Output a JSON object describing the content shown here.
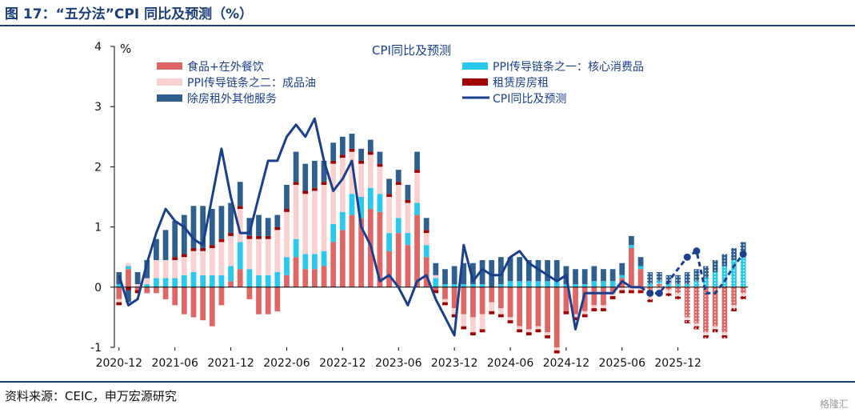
{
  "header": {
    "title": "图 17：“五分法”CPI 同比及预测（%）"
  },
  "footer": {
    "source": "资料来源：CEIC，申万宏源研究",
    "watermark": "格隆汇"
  },
  "colors": {
    "food": "#e06666",
    "core": "#29c9ef",
    "oil": "#f7d0cf",
    "rent": "#a00000",
    "services": "#2e5f8f",
    "cpi_line": "#1a3f8f"
  },
  "chart_data": {
    "type": "bar",
    "stacked": true,
    "legend_title": "CPI同比及预测",
    "legend_position": "top",
    "ylabel": "%",
    "ylim": [
      -1,
      4
    ],
    "yticks": [
      "-1",
      "0",
      "1",
      "2",
      "3",
      "4"
    ],
    "grid": false,
    "xtick_labels": [
      "2020-12",
      "2021-06",
      "2021-12",
      "2022-06",
      "2022-12",
      "2023-06",
      "2023-12",
      "2024-06",
      "2024-12",
      "2025-06",
      "2025-12"
    ],
    "forecast_from_index": 57,
    "series": [
      {
        "key": "food",
        "name": "食品+在外餐饮",
        "values": [
          -0.2,
          0.3,
          -0.05,
          -0.1,
          -0.1,
          -0.2,
          -0.3,
          -0.45,
          -0.5,
          -0.55,
          -0.65,
          -0.3,
          0.1,
          0.3,
          -0.2,
          -0.45,
          -0.45,
          -0.4,
          0.2,
          0.5,
          0.3,
          0.3,
          0.35,
          0.75,
          0.95,
          1.2,
          1.15,
          1.3,
          1.25,
          0.6,
          0.9,
          0.7,
          1.2,
          0.5,
          -0.05,
          -0.2,
          -0.35,
          -0.45,
          -0.5,
          -0.45,
          -0.25,
          -0.35,
          -0.5,
          -0.65,
          -0.7,
          -0.65,
          -0.75,
          -1.0,
          -0.4,
          -0.45,
          -0.4,
          -0.3,
          -0.3,
          -0.1,
          0.15,
          0.65,
          0.3,
          -0.15,
          0.05,
          -0.05,
          -0.1,
          -0.5,
          -0.6,
          -0.75,
          -0.65,
          -0.75,
          -0.3,
          -0.1
        ]
      },
      {
        "key": "core",
        "name": "PPI传导链条之一：核心消费品",
        "values": [
          0.05,
          0.05,
          0.0,
          0.05,
          0.15,
          0.15,
          0.15,
          0.2,
          0.25,
          0.2,
          0.2,
          0.2,
          0.25,
          0.45,
          0.3,
          0.2,
          0.2,
          0.25,
          0.3,
          0.3,
          0.25,
          0.25,
          0.25,
          0.3,
          0.3,
          0.35,
          0.35,
          0.35,
          0.3,
          0.3,
          0.25,
          0.2,
          0.2,
          0.2,
          0.15,
          0.05,
          0.05,
          0.05,
          0.05,
          0.05,
          0.0,
          0.05,
          0.1,
          0.1,
          0.1,
          0.1,
          0.1,
          0.1,
          0.05,
          0.05,
          0.05,
          0.1,
          0.1,
          0.1,
          0.05,
          0.05,
          0.05,
          0.05,
          0.05,
          0.05,
          0.05,
          0.05,
          0.1,
          0.15,
          0.25,
          0.35,
          0.45,
          0.5
        ]
      },
      {
        "key": "oil",
        "name": "PPI传导链条之二：成品油",
        "values": [
          -0.05,
          0.05,
          0.05,
          0.1,
          0.3,
          0.3,
          0.3,
          0.3,
          0.35,
          0.4,
          0.45,
          0.55,
          0.5,
          0.55,
          0.5,
          0.6,
          0.6,
          0.7,
          0.75,
          0.9,
          1.0,
          1.05,
          1.1,
          1.0,
          0.9,
          0.7,
          0.55,
          0.55,
          0.45,
          0.6,
          0.55,
          0.5,
          0.5,
          0.2,
          0.05,
          -0.05,
          -0.1,
          -0.2,
          -0.25,
          -0.25,
          -0.15,
          -0.1,
          -0.05,
          -0.05,
          -0.05,
          -0.05,
          -0.05,
          -0.05,
          0.0,
          -0.05,
          -0.05,
          -0.05,
          -0.05,
          -0.05,
          -0.05,
          -0.05,
          -0.05,
          -0.05,
          -0.05,
          -0.05,
          -0.05,
          -0.05,
          -0.05,
          -0.05,
          -0.05,
          -0.05,
          -0.05,
          -0.05
        ]
      },
      {
        "key": "rent",
        "name": "租赁房房租",
        "values": [
          -0.05,
          -0.05,
          -0.05,
          0.0,
          0.0,
          0.0,
          0.05,
          0.05,
          0.05,
          0.05,
          0.05,
          0.05,
          0.05,
          0.05,
          0.05,
          0.05,
          0.05,
          0.05,
          0.05,
          0.05,
          0.05,
          0.05,
          0.05,
          0.05,
          0.05,
          0.05,
          0.05,
          0.05,
          0.05,
          0.05,
          0.05,
          0.05,
          0.05,
          0.05,
          -0.05,
          -0.05,
          -0.05,
          -0.05,
          -0.05,
          -0.05,
          -0.05,
          -0.05,
          -0.05,
          -0.05,
          -0.05,
          -0.05,
          -0.05,
          -0.05,
          -0.05,
          -0.05,
          -0.05,
          -0.05,
          -0.05,
          -0.05,
          -0.05,
          -0.05,
          -0.05,
          -0.05,
          -0.05,
          -0.05,
          -0.05,
          -0.05,
          -0.05,
          -0.05,
          -0.05,
          -0.05,
          -0.05,
          -0.05
        ]
      },
      {
        "key": "services",
        "name": "除房租外其他服务",
        "values": [
          0.2,
          -0.2,
          0.2,
          0.3,
          0.35,
          0.5,
          0.6,
          0.65,
          0.7,
          0.7,
          0.6,
          0.55,
          0.5,
          0.4,
          0.3,
          0.35,
          0.3,
          0.2,
          0.4,
          0.5,
          0.45,
          0.45,
          0.35,
          0.3,
          0.3,
          0.25,
          0.2,
          0.2,
          0.2,
          0.25,
          0.2,
          0.25,
          0.3,
          0.2,
          0.2,
          0.25,
          0.3,
          0.35,
          0.35,
          0.4,
          0.45,
          0.45,
          0.4,
          0.4,
          0.35,
          0.35,
          0.35,
          0.35,
          0.3,
          0.25,
          0.25,
          0.25,
          0.2,
          0.2,
          0.2,
          0.15,
          0.15,
          0.2,
          0.15,
          0.15,
          0.15,
          0.2,
          0.2,
          0.2,
          0.2,
          0.2,
          0.2,
          0.25
        ]
      }
    ],
    "cpi_line": {
      "name": "CPI同比及预测",
      "values": [
        0.2,
        -0.3,
        -0.2,
        0.4,
        0.9,
        1.3,
        1.1,
        1.0,
        0.8,
        0.7,
        1.5,
        2.3,
        1.5,
        0.9,
        0.9,
        1.5,
        2.1,
        2.1,
        2.5,
        2.7,
        2.5,
        2.8,
        2.1,
        1.6,
        1.8,
        2.1,
        1.0,
        0.7,
        0.1,
        0.2,
        0.0,
        -0.3,
        0.1,
        0.2,
        -0.2,
        -0.5,
        -0.8,
        0.7,
        0.1,
        0.3,
        0.2,
        0.2,
        0.5,
        0.6,
        0.4,
        0.3,
        0.2,
        0.1,
        0.2,
        -0.7,
        -0.1,
        -0.1,
        -0.1,
        -0.1,
        0.1,
        0.0,
        0.0,
        -0.1,
        -0.1,
        0.1,
        0.3,
        0.5,
        0.6,
        -0.1,
        -0.1,
        0.1,
        0.35,
        0.55
      ]
    }
  }
}
